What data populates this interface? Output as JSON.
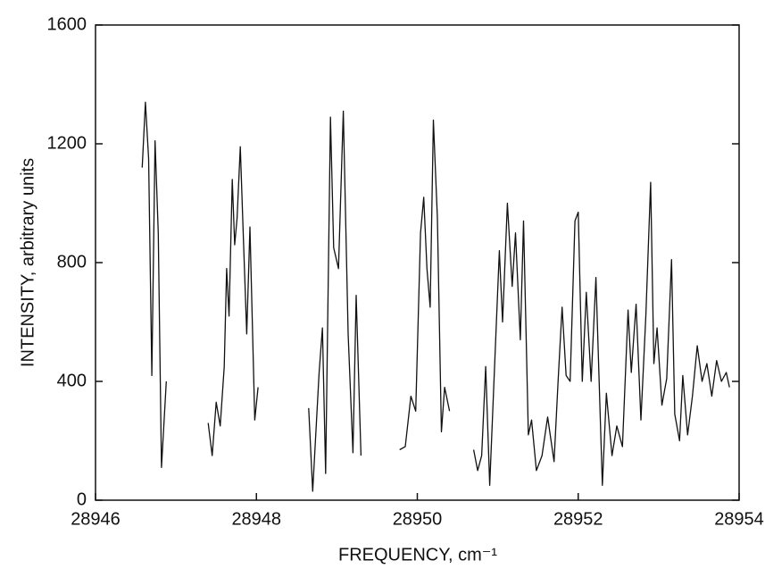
{
  "chart_data": {
    "type": "line",
    "xlabel": "FREQUENCY, cm⁻¹",
    "ylabel": "INTENSITY, arbitrary units",
    "xlim": [
      28946,
      28954
    ],
    "xticks": [
      28946,
      28948,
      28950,
      28952,
      28954
    ],
    "ylim": [
      0,
      1600
    ],
    "yticks": [
      0,
      400,
      800,
      1200,
      1600
    ],
    "grid": false,
    "x": [
      28946.58,
      28946.62,
      28946.66,
      28946.7,
      28946.74,
      28946.78,
      28946.82,
      28946.88,
      null,
      28947.4,
      28947.45,
      28947.5,
      28947.55,
      28947.6,
      28947.63,
      28947.66,
      28947.7,
      28947.73,
      28947.76,
      28947.8,
      28947.84,
      28947.88,
      28947.92,
      28947.98,
      28948.02,
      null,
      28948.65,
      28948.7,
      28948.78,
      28948.82,
      28948.86,
      28948.92,
      28948.96,
      28949.02,
      28949.08,
      28949.14,
      28949.2,
      28949.24,
      28949.3,
      null,
      28949.78,
      28949.85,
      28949.92,
      28949.98,
      28950.04,
      28950.08,
      28950.12,
      28950.16,
      28950.2,
      28950.25,
      28950.3,
      28950.34,
      28950.4,
      null,
      28950.7,
      28950.75,
      28950.8,
      28950.85,
      28950.9,
      28950.95,
      28951.02,
      28951.06,
      28951.12,
      28951.18,
      28951.22,
      28951.28,
      28951.32,
      28951.38,
      28951.42,
      28951.48,
      28951.55,
      28951.62,
      28951.7,
      28951.75,
      28951.8,
      28951.85,
      28951.9,
      28951.96,
      28952.0,
      28952.05,
      28952.1,
      28952.16,
      28952.22,
      28952.3,
      28952.35,
      28952.42,
      28952.48,
      28952.55,
      28952.62,
      28952.66,
      28952.72,
      28952.78,
      28952.84,
      28952.9,
      28952.94,
      28952.98,
      28953.04,
      28953.1,
      28953.16,
      28953.2,
      28953.26,
      28953.3,
      28953.36,
      28953.42,
      28953.48,
      28953.54,
      28953.6,
      28953.66,
      28953.72,
      28953.78,
      28953.84,
      28953.88
    ],
    "series": [
      {
        "color": "#111111",
        "values": [
          1120,
          1340,
          1150,
          420,
          1210,
          900,
          110,
          400,
          null,
          260,
          150,
          330,
          250,
          450,
          780,
          620,
          1080,
          860,
          950,
          1190,
          870,
          560,
          920,
          270,
          380,
          null,
          310,
          30,
          430,
          580,
          90,
          1290,
          850,
          780,
          1310,
          560,
          160,
          690,
          150,
          null,
          170,
          180,
          350,
          300,
          900,
          1020,
          780,
          650,
          1280,
          950,
          230,
          380,
          300,
          null,
          170,
          100,
          150,
          450,
          50,
          380,
          840,
          600,
          1000,
          720,
          900,
          540,
          940,
          220,
          270,
          100,
          150,
          280,
          130,
          400,
          650,
          420,
          400,
          940,
          970,
          400,
          700,
          400,
          750,
          50,
          360,
          150,
          250,
          180,
          640,
          430,
          660,
          270,
          620,
          1070,
          460,
          580,
          320,
          410,
          810,
          290,
          200,
          420,
          220,
          350,
          520,
          400,
          460,
          350,
          470,
          400,
          430,
          380
        ]
      }
    ]
  }
}
